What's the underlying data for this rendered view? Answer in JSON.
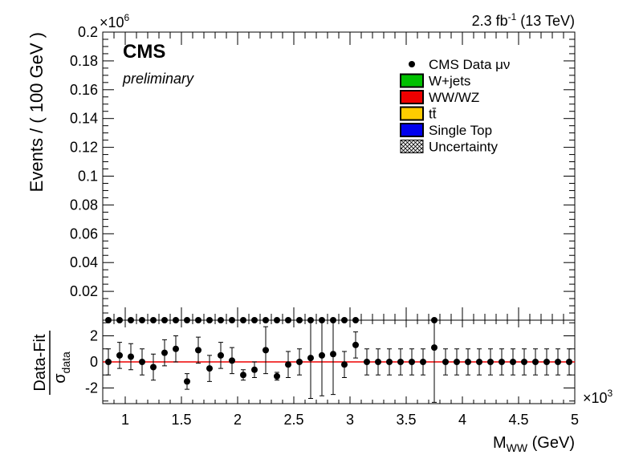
{
  "header": {
    "lumi_label": "2.3 fb",
    "lumi_exp": "-1",
    "energy_label": " (13 TeV)"
  },
  "logo": {
    "experiment": "CMS",
    "status": "preliminary"
  },
  "legend": {
    "items": [
      {
        "label": "CMS Data μν",
        "kind": "marker",
        "color": "#000000"
      },
      {
        "label": "W+jets",
        "kind": "box",
        "color": "#00c000"
      },
      {
        "label": "WW/WZ",
        "kind": "box",
        "color": "#ee0000"
      },
      {
        "label": "tt̄",
        "kind": "box",
        "color": "#ffcc00"
      },
      {
        "label": "Single Top",
        "kind": "box",
        "color": "#0000ee"
      },
      {
        "label": "Uncertainty",
        "kind": "hatch",
        "color": "#000000"
      }
    ]
  },
  "chart_data": [
    {
      "type": "scatter",
      "panel": "main",
      "ylabel": "Events / ( 100 GeV )",
      "y_multiplier": "×10",
      "y_multiplier_exp": "6",
      "ylim": [
        0,
        0.2
      ],
      "yticks": [
        "0.02",
        "0.04",
        "0.06",
        "0.08",
        "0.1",
        "0.12",
        "0.14",
        "0.16",
        "0.18",
        "0.2"
      ],
      "xlim": [
        0.8,
        5.0
      ],
      "series": [
        {
          "name": "CMS Data μν",
          "x": [
            0.85,
            0.95,
            1.05,
            1.15,
            1.25,
            1.35,
            1.45,
            1.55,
            1.65,
            1.75,
            1.85,
            1.95,
            2.05,
            2.15,
            2.25,
            2.35,
            2.45,
            2.55,
            2.65,
            2.75,
            2.85,
            2.95,
            3.05
          ],
          "y": [
            0,
            0,
            0,
            0,
            0,
            0,
            0,
            0,
            0,
            0,
            0,
            0,
            0,
            0,
            0,
            0,
            0,
            0,
            0,
            0,
            0,
            0,
            0
          ]
        }
      ],
      "extra_points_x": [
        3.75
      ]
    },
    {
      "type": "scatter",
      "panel": "ratio",
      "ylabel_main": "Data-Fit",
      "ylabel_sub": "σ",
      "ylabel_sub_sub": "data",
      "xlabel_main": "M",
      "xlabel_sub": "WW",
      "xlabel_unit": " (GeV)",
      "x_multiplier": "×10",
      "x_multiplier_exp": "3",
      "xlim": [
        0.8,
        5.0
      ],
      "xticks": [
        "1",
        "1.5",
        "2",
        "2.5",
        "3",
        "3.5",
        "4",
        "4.5",
        "5"
      ],
      "ylim": [
        -3.2,
        3.2
      ],
      "yticks": [
        "-2",
        "0",
        "2"
      ],
      "fit_line_color": "#ee0000",
      "series": [
        {
          "name": "Data-Fit",
          "x": [
            0.85,
            0.95,
            1.05,
            1.15,
            1.25,
            1.35,
            1.45,
            1.55,
            1.65,
            1.75,
            1.85,
            1.95,
            2.05,
            2.15,
            2.25,
            2.35,
            2.45,
            2.55,
            2.65,
            2.75,
            2.85,
            2.95,
            3.05,
            3.15,
            3.25,
            3.35,
            3.45,
            3.55,
            3.65,
            3.75,
            3.85,
            3.95,
            4.05,
            4.15,
            4.25,
            4.35,
            4.45,
            4.55,
            4.65,
            4.75,
            4.85,
            4.95
          ],
          "y": [
            0,
            0.5,
            0.4,
            0,
            -0.4,
            0.7,
            1.0,
            -1.5,
            0.9,
            -0.5,
            0.5,
            0.1,
            -1.0,
            -0.6,
            0.9,
            -1.1,
            -0.2,
            0,
            0.3,
            0.5,
            0.6,
            -0.2,
            1.3,
            0,
            0,
            0,
            0,
            0,
            0,
            1.1,
            0,
            0,
            0,
            0,
            0,
            0,
            0,
            0,
            0,
            0,
            0,
            0
          ],
          "err": [
            1,
            1,
            1,
            1,
            1,
            1,
            1,
            0.6,
            1,
            1,
            1,
            1,
            0.4,
            0.6,
            1.8,
            0.3,
            1,
            1,
            3.1,
            3.1,
            3.1,
            1,
            1,
            1,
            1,
            1,
            1,
            1,
            1,
            4.2,
            1,
            1,
            1,
            1,
            1,
            1,
            1,
            1,
            1,
            1,
            1,
            1
          ]
        }
      ]
    }
  ]
}
